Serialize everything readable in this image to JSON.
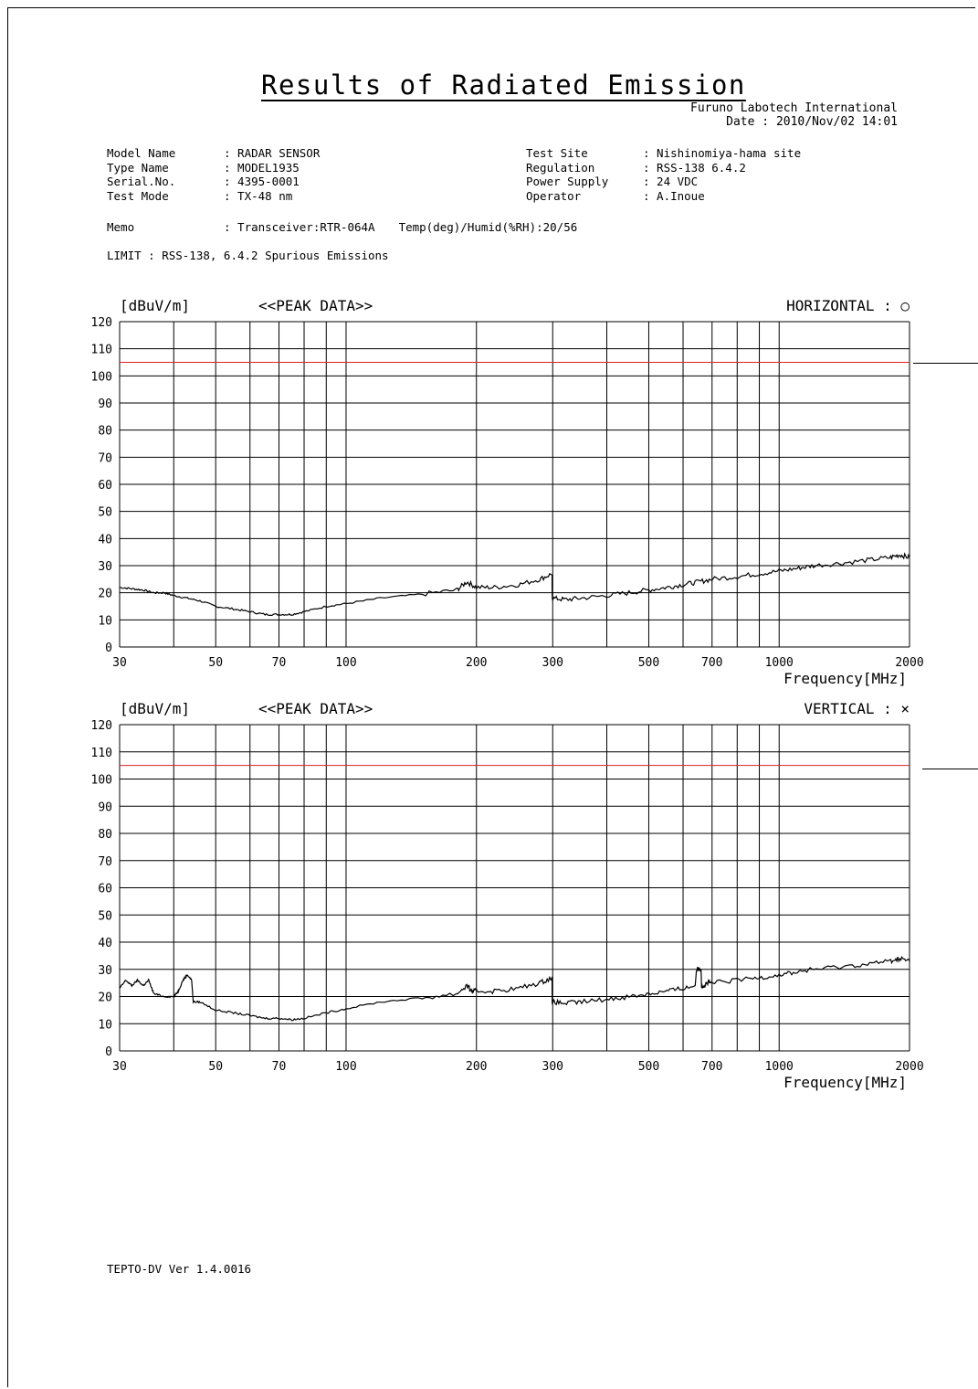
{
  "title": "Results of Radiated Emission",
  "lab": {
    "name": "Furuno Labotech International",
    "date": "Date : 2010/Nov/02 14:01"
  },
  "info_left": [
    {
      "label": "Model Name",
      "value": ": RADAR SENSOR"
    },
    {
      "label": "Type Name",
      "value": ": MODEL1935"
    },
    {
      "label": "Serial.No.",
      "value": ": 4395-0001"
    },
    {
      "label": "Test Mode",
      "value": ": TX-48 nm"
    }
  ],
  "info_right": [
    {
      "label": "Test Site",
      "value": ": Nishinomiya-hama site"
    },
    {
      "label": "Regulation",
      "value": ": RSS-138 6.4.2"
    },
    {
      "label": "Power Supply",
      "value": ": 24 VDC"
    },
    {
      "label": "Operator",
      "value": ": A.Inoue"
    }
  ],
  "memo": {
    "label": "Memo",
    "value": ": Transceiver:RTR-064A",
    "temp": "Temp(deg)/Humid(%RH):20/56"
  },
  "limit_text": "LIMIT : RSS-138, 6.4.2 Spurious Emissions",
  "footer": "TEPTO-DV Ver 1.4.0016",
  "colors": {
    "limit": "#e02020",
    "trace": "#000000",
    "grid": "#000000"
  },
  "chart_data": [
    {
      "type": "line",
      "title": "<<PEAK DATA>>",
      "polarization": "HORIZONTAL : ○",
      "ylabel": "[dBuV/m]",
      "xlabel": "Frequency[MHz]",
      "xscale": "log",
      "xlim": [
        30,
        2000
      ],
      "ylim": [
        0,
        120
      ],
      "x_ticks": [
        30,
        50,
        70,
        100,
        200,
        300,
        500,
        700,
        1000,
        2000
      ],
      "x_tick_labels": [
        "30",
        "50",
        "70",
        "100",
        "200",
        "300",
        "500",
        "700",
        "1000",
        "2000"
      ],
      "x_gridlines": [
        30,
        40,
        50,
        60,
        70,
        80,
        90,
        100,
        200,
        300,
        400,
        500,
        600,
        700,
        800,
        900,
        1000,
        2000
      ],
      "y_ticks": [
        0,
        10,
        20,
        30,
        40,
        50,
        60,
        70,
        80,
        90,
        100,
        110,
        120
      ],
      "grid": true,
      "limit_line": 105,
      "series": [
        {
          "x": [
            30,
            32,
            34,
            36,
            38,
            40,
            43,
            46,
            50,
            55,
            60,
            65,
            70,
            75,
            80,
            90,
            100,
            120,
            150,
            180,
            190,
            200,
            220,
            250,
            280,
            299,
            300,
            320,
            350,
            400,
            450,
            500,
            550,
            600,
            650,
            700,
            800,
            900,
            1000,
            1100,
            1200,
            1400,
            1600,
            1800,
            1900,
            2000
          ],
          "y": [
            22,
            21.5,
            21,
            20,
            20,
            19,
            18,
            17,
            15,
            14,
            13,
            12,
            12,
            12,
            13,
            15,
            16,
            18,
            19.5,
            21,
            24,
            22,
            22,
            23,
            25,
            27,
            18,
            17.5,
            18,
            19,
            20,
            21,
            22,
            23,
            24,
            25,
            26,
            27,
            28,
            29,
            30,
            31,
            32,
            33,
            34,
            33
          ]
        }
      ]
    },
    {
      "type": "line",
      "title": "<<PEAK DATA>>",
      "polarization": "VERTICAL : ×",
      "ylabel": "[dBuV/m]",
      "xlabel": "Frequency[MHz]",
      "xscale": "log",
      "xlim": [
        30,
        2000
      ],
      "ylim": [
        0,
        120
      ],
      "x_ticks": [
        30,
        50,
        70,
        100,
        200,
        300,
        500,
        700,
        1000,
        2000
      ],
      "x_tick_labels": [
        "30",
        "50",
        "70",
        "100",
        "200",
        "300",
        "500",
        "700",
        "1000",
        "2000"
      ],
      "x_gridlines": [
        30,
        40,
        50,
        60,
        70,
        80,
        90,
        100,
        200,
        300,
        400,
        500,
        600,
        700,
        800,
        900,
        1000,
        2000
      ],
      "y_ticks": [
        0,
        10,
        20,
        30,
        40,
        50,
        60,
        70,
        80,
        90,
        100,
        110,
        120
      ],
      "grid": true,
      "limit_line": 105,
      "series": [
        {
          "x": [
            30,
            31,
            32,
            33,
            34,
            35,
            36,
            38,
            40,
            41,
            42,
            43,
            44,
            46,
            50,
            55,
            60,
            65,
            70,
            75,
            80,
            90,
            100,
            120,
            150,
            180,
            190,
            195,
            200,
            220,
            250,
            280,
            299,
            300,
            320,
            350,
            400,
            450,
            500,
            550,
            600,
            640,
            660,
            670,
            680,
            700,
            800,
            900,
            1000,
            1100,
            1200,
            1400,
            1600,
            1800,
            1900,
            2000
          ],
          "y": [
            23,
            26,
            24,
            26,
            24,
            26,
            21,
            20,
            20,
            22,
            26,
            28,
            26,
            18,
            15,
            14,
            13,
            12,
            12,
            11.5,
            12,
            14,
            15.5,
            18,
            19.5,
            21,
            24,
            22,
            22,
            22,
            23,
            25,
            27,
            18,
            17.5,
            18,
            19,
            20,
            21,
            22,
            23,
            24,
            30,
            24,
            25,
            25,
            26,
            27,
            28,
            29,
            30,
            31,
            32,
            33,
            34,
            33
          ]
        }
      ]
    }
  ]
}
